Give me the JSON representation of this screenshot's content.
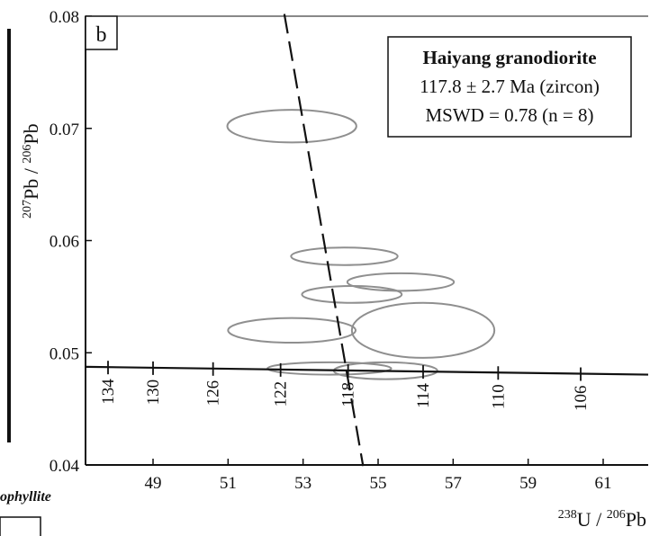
{
  "chart_data": {
    "type": "scatter",
    "panel_label": "b",
    "legend": {
      "title": "Haiyang granodiorite",
      "line1": "117.8 ± 2.7 Ma (zircon)",
      "line2": "MSWD = 0.78 (n = 8)"
    },
    "xaxis": {
      "label_main": "U / ",
      "label_sup1": "238",
      "label_sup2": "206",
      "label_tail": "Pb",
      "range": [
        47.2,
        62.2
      ],
      "ticks": [
        49,
        51,
        53,
        55,
        57,
        59,
        61
      ],
      "tick_labels": [
        "49",
        "51",
        "53",
        "55",
        "57",
        "59",
        "61"
      ]
    },
    "yaxis": {
      "label_sup1": "207",
      "label_mid": "Pb / ",
      "label_sup2": "206",
      "label_tail": "Pb",
      "range": [
        0.04,
        0.08
      ],
      "ticks": [
        0.04,
        0.05,
        0.06,
        0.07,
        0.08
      ],
      "tick_labels": [
        "0.04",
        "0.05",
        "0.06",
        "0.07",
        "0.08"
      ]
    },
    "concordia": {
      "points": [
        [
          47.2,
          0.04875
        ],
        [
          62.2,
          0.04805
        ]
      ],
      "age_marks": [
        {
          "x": 47.8,
          "label": "134"
        },
        {
          "x": 49.0,
          "label": "130"
        },
        {
          "x": 50.6,
          "label": "126"
        },
        {
          "x": 52.4,
          "label": "122"
        },
        {
          "x": 54.2,
          "label": "118"
        },
        {
          "x": 56.2,
          "label": "114"
        },
        {
          "x": 58.2,
          "label": "110"
        },
        {
          "x": 60.4,
          "label": "106"
        }
      ]
    },
    "discordia": {
      "points": [
        [
          52.5,
          0.0802
        ],
        [
          54.6,
          0.0399
        ]
      ]
    },
    "ellipses": [
      {
        "cx": 52.7,
        "cy": 0.0702,
        "rx": 1.72,
        "ry": 0.00145
      },
      {
        "cx": 54.1,
        "cy": 0.0586,
        "rx": 1.42,
        "ry": 0.00078
      },
      {
        "cx": 55.6,
        "cy": 0.0563,
        "rx": 1.42,
        "ry": 0.00078
      },
      {
        "cx": 54.3,
        "cy": 0.0552,
        "rx": 1.33,
        "ry": 0.00075
      },
      {
        "cx": 52.7,
        "cy": 0.052,
        "rx": 1.7,
        "ry": 0.0011
      },
      {
        "cx": 56.2,
        "cy": 0.052,
        "rx": 1.9,
        "ry": 0.00245
      },
      {
        "cx": 53.7,
        "cy": 0.0486,
        "rx": 1.65,
        "ry": 0.00055
      },
      {
        "cx": 55.2,
        "cy": 0.0484,
        "rx": 1.38,
        "ry": 0.00075
      }
    ]
  },
  "fragments": {
    "left_label": "ophyllite"
  }
}
